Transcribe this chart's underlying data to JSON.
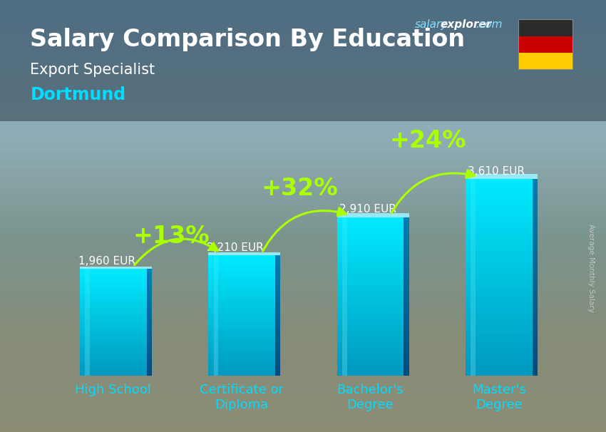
{
  "title": "Salary Comparison By Education",
  "subtitle": "Export Specialist",
  "city": "Dortmund",
  "ylabel": "Average Monthly Salary",
  "categories": [
    "High School",
    "Certificate or\nDiploma",
    "Bachelor's\nDegree",
    "Master's\nDegree"
  ],
  "values": [
    1960,
    2210,
    2910,
    3610
  ],
  "value_labels": [
    "1,960 EUR",
    "2,210 EUR",
    "2,910 EUR",
    "3,610 EUR"
  ],
  "pct_labels": [
    "+13%",
    "+32%",
    "+24%"
  ],
  "bg_top_color": "#7a9bb5",
  "bg_mid_color": "#8a9eaa",
  "bg_bottom_color": "#9aaa99",
  "bar_color_light": "#00d8f8",
  "bar_color_dark": "#0099cc",
  "bar_side_color": "#006688",
  "title_color": "#ffffff",
  "subtitle_color": "#ffffff",
  "city_color": "#00ddff",
  "value_label_color": "#ffffff",
  "pct_color": "#aaff00",
  "arrow_color": "#aaff00",
  "xtick_color": "#00ddff",
  "watermark_salary_color": "#88ddff",
  "watermark_explorer_color": "#ffffff",
  "watermark_com_color": "#88ddff",
  "ylim_max": 4600,
  "bar_width": 0.52,
  "flag_colors": [
    "#2b2b2b",
    "#cc0000",
    "#ffcc00"
  ],
  "salary_label_fontsize": 11,
  "pct_fontsize": 24,
  "title_fontsize": 24,
  "subtitle_fontsize": 15,
  "city_fontsize": 17,
  "xtick_fontsize": 13,
  "watermark_fontsize": 11
}
